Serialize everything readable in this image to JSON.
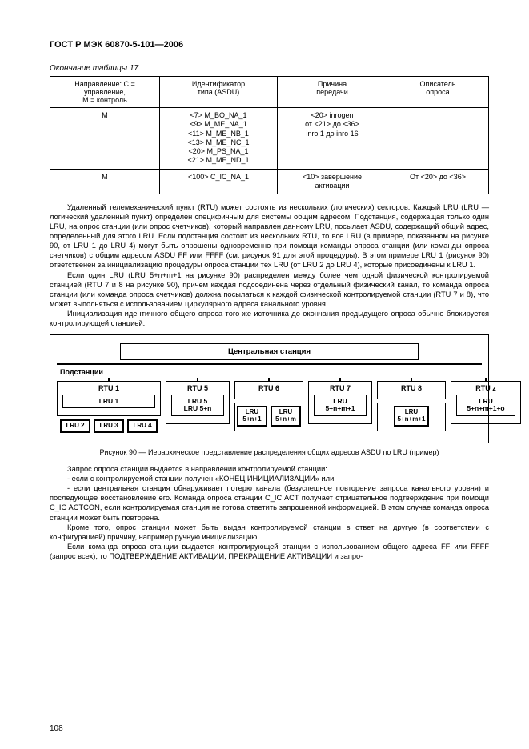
{
  "header": {
    "title": "ГОСТ Р МЭК 60870-5-101—2006"
  },
  "table": {
    "caption": "Окончание таблицы 17",
    "columns": [
      "Направление: С = управление,\nМ = контроль",
      "Идентификатор\nтипа (ASDU)",
      "Причина\nпередачи",
      "Описатель\nопроса"
    ],
    "rows": [
      {
        "dir": "M",
        "asdu": [
          "<7> M_BO_NA_1",
          "<9> M_ME_NA_1",
          "<11> M_ME_NB_1",
          "<13> M_ME_NC_1",
          "<20> M_PS_NA_1",
          "<21> M_ME_ND_1"
        ],
        "cause": [
          "<20> inrogen",
          "от <21> до <36>",
          "inro 1 до inro 16"
        ],
        "desc": ""
      },
      {
        "dir": "M",
        "asdu": [
          "<100> C_IC_NA_1"
        ],
        "cause": [
          "<10> завершение",
          "активации"
        ],
        "desc": "От <20> до <36>"
      }
    ]
  },
  "paragraphs": {
    "p1": "Удаленный телемеханический пункт (RTU) может состоять из нескольких (логических) секторов. Каждый LRU (LRU — логический удаленный пункт) определен специфичным для системы общим адресом. Подстанция, содержащая только один LRU, на опрос станции (или опрос счетчиков), который направлен данному LRU, посылает ASDU, содержащий общий адрес, определенный для этого LRU. Если подстанция состоит из нескольких RTU, то все LRU (в примере, показанном на рисунке 90, от LRU 1 до LRU 4) могут быть опрошены одновременно при помощи команды опроса станции (или команды опроса счетчиков) с общим адресом ASDU FF или FFFF (см. рисунок 91 для этой процедуры). В этом примере LRU 1 (рисунок 90) ответственен за инициализацию процедуры опроса станции тех LRU (от LRU 2 до LRU 4), которые присоединены к LRU 1.",
    "p2": "Если один LRU (LRU 5+n+m+1 на рисунке 90) распределен между более чем одной физической контролируемой станцией (RTU 7 и 8 на рисунке 90), причем каждая подсоединена через отдельный физический канал, то команда опроса станции (или команда опроса счетчиков) должна посылаться к каждой физической контролируемой станции (RTU 7 и 8), что может выполняться с использованием циркулярного адреса канального уровня.",
    "p3": "Инициализация идентичного общего опроса того же источника до окончания предыдущего опроса обычно блокируется контролирующей станцией."
  },
  "diagram": {
    "central": "Центральная станция",
    "sub_label": "Подстанции",
    "rtu": [
      {
        "title": "RTU 1",
        "main_w": 120,
        "lru_main": "LRU 1",
        "lru_row": [
          "LRU 2",
          "LRU 3",
          "LRU 4"
        ]
      },
      {
        "title": "RTU 5",
        "main_w": 70,
        "lru_main": "LRU 5\nLRU 5+n",
        "lru_row": []
      },
      {
        "title": "RTU 6",
        "main_w": 76,
        "lru_main": null,
        "lru_row": [
          "LRU 5+n+1",
          "LRU 5+n+m"
        ]
      },
      {
        "title": "RTU 7",
        "main_w": 70,
        "lru_main": "LRU\n5+n+m+1",
        "lru_row": []
      },
      {
        "title": "RTU 8",
        "main_w": 76,
        "lru_main": null,
        "lru_row": [
          "LRU\n5+n+m+1"
        ]
      },
      {
        "title": "RTU z",
        "main_w": 78,
        "lru_main": "LRU\n5+n+m+1+o",
        "lru_row": []
      }
    ],
    "caption": "Рисунок 90 — Иерархическое представление распределения общих адресов ASDU по LRU (пример)"
  },
  "paragraphs2": {
    "q1": "Запрос опроса станции выдается в направлении контролируемой станции:",
    "q2": "- если с контролируемой станции получен «КОНЕЦ ИНИЦИАЛИЗАЦИИ» или",
    "q3": "- если центральная станция обнаруживает потерю канала (безуспешное повторение запроса канального уровня) и последующее восстановление его. Команда опроса станции C_IC ACT получает отрицательное подтверждение при помощи C_IC ACTCON, если контролируемая станция не готова ответить запрошенной информацией. В этом случае команда опроса станции может быть повторена.",
    "q4": "Кроме того, опрос станции может быть выдан контролируемой станции в ответ на другую (в соответствии с конфигурацией) причину, например ручную инициализацию.",
    "q5": "Если команда опроса станции выдается контролирующей станции с использованием общего адреса FF или FFFF (запрос всех), то ПОДТВЕРЖДЕНИЕ АКТИВАЦИИ, ПРЕКРАЩЕНИЕ АКТИВАЦИИ и запро-"
  },
  "page_number": "108"
}
